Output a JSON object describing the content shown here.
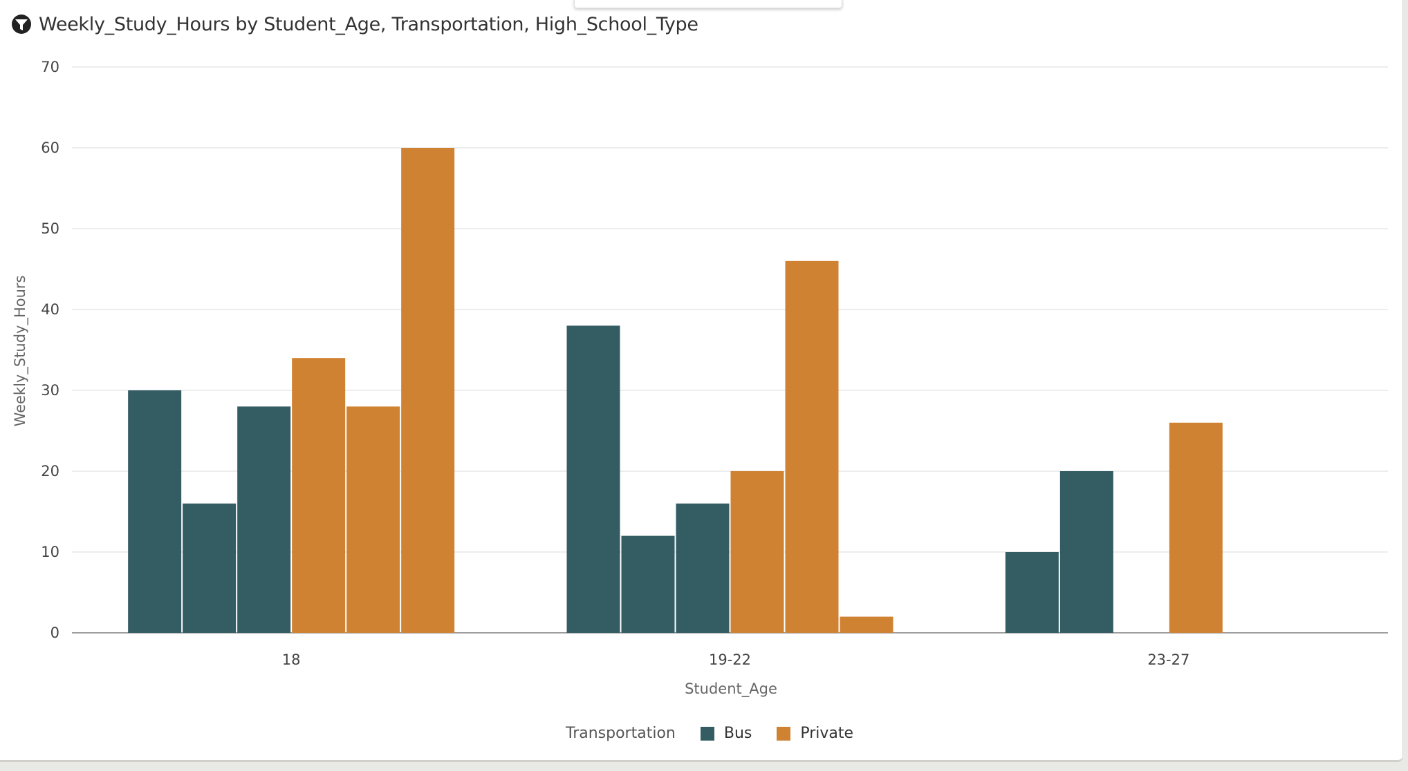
{
  "header": {
    "title": "Weekly_Study_Hours by Student_Age, Transportation, High_School_Type",
    "icon": "filter-icon"
  },
  "chart_data": {
    "type": "bar",
    "title": "Weekly_Study_Hours by Student_Age, Transportation, High_School_Type",
    "xlabel": "Student_Age",
    "ylabel": "Weekly_Study_Hours",
    "ylim": [
      0,
      70
    ],
    "yticks": [
      "0",
      "10",
      "20",
      "30",
      "40",
      "50",
      "60",
      "70"
    ],
    "grid": true,
    "categories": [
      "18",
      "19-22",
      "23-27"
    ],
    "legend_title": "Transportation",
    "legend_position": "bottom",
    "series": [
      {
        "name": "Bus",
        "color": "#345c63",
        "values": [
          [
            30,
            16,
            28
          ],
          [
            38,
            12,
            16
          ],
          [
            10,
            20,
            null
          ]
        ]
      },
      {
        "name": "Private",
        "color": "#d08233",
        "values": [
          [
            34,
            28,
            60
          ],
          [
            20,
            46,
            2
          ],
          [
            26,
            null,
            null
          ]
        ]
      }
    ]
  }
}
